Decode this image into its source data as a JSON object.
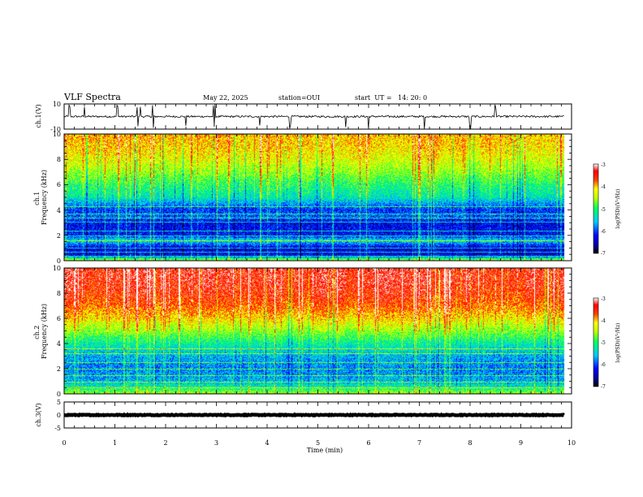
{
  "header": {
    "title": "VLF Spectra",
    "date": "May 22, 2025",
    "station": "station=OUI",
    "start_ut": "start  UT =   14: 20: 0"
  },
  "colors": {
    "colormap": [
      "#000080",
      "#0000ff",
      "#00a0ff",
      "#00ffff",
      "#00ff80",
      "#80ff00",
      "#ffff00",
      "#ff8000",
      "#ff0000",
      "#ffffff"
    ]
  },
  "chart_data": [
    {
      "type": "line",
      "name": "ch1-waveform",
      "ylabel": "ch.1(V)",
      "xlim": [
        0,
        10
      ],
      "ylim": [
        -10,
        10
      ],
      "ytick_labels": [
        "10",
        "-10"
      ],
      "baseline_v": 0,
      "noise_v": 1.5,
      "data_end_min": 9.85,
      "spikes_min": [
        0.1,
        0.4,
        1.05,
        1.45,
        1.5,
        1.75,
        2.4,
        2.95,
        2.97,
        3.85,
        4.45,
        5.55,
        6.0,
        7.1,
        8.0,
        8.5
      ]
    },
    {
      "type": "heatmap",
      "name": "ch1-spectrogram",
      "ylabel": "ch.1\nFrequency (kHz)",
      "xlim": [
        0,
        10
      ],
      "ylim": [
        0,
        10
      ],
      "ytick_labels": [
        "0",
        "2",
        "4",
        "6",
        "8",
        "10"
      ],
      "data_end_min": 9.85,
      "colorbar": {
        "label": "log(PSD)(V^2/Hz)",
        "range": [
          -7,
          -3
        ],
        "tick_labels": [
          "-3",
          "-4",
          "-5",
          "-6",
          "-7"
        ]
      },
      "profile": [
        {
          "f_khz": 0.0,
          "log_psd": -4.3
        },
        {
          "f_khz": 0.4,
          "log_psd": -6.3
        },
        {
          "f_khz": 1.0,
          "log_psd": -6.4
        },
        {
          "f_khz": 1.6,
          "log_psd": -5.4
        },
        {
          "f_khz": 2.0,
          "log_psd": -6.2
        },
        {
          "f_khz": 3.0,
          "log_psd": -6.3
        },
        {
          "f_khz": 3.5,
          "log_psd": -5.9
        },
        {
          "f_khz": 4.0,
          "log_psd": -6.1
        },
        {
          "f_khz": 5.0,
          "log_psd": -5.3
        },
        {
          "f_khz": 6.0,
          "log_psd": -5.0
        },
        {
          "f_khz": 7.0,
          "log_psd": -4.6
        },
        {
          "f_khz": 8.0,
          "log_psd": -4.3
        },
        {
          "f_khz": 9.0,
          "log_psd": -4.1
        },
        {
          "f_khz": 10.0,
          "log_psd": -4.0
        }
      ],
      "line_freqs_khz": [
        0.4,
        0.7,
        1.0,
        1.6,
        2.0,
        2.4,
        3.1,
        3.4,
        3.7,
        4.3
      ]
    },
    {
      "type": "heatmap",
      "name": "ch2-spectrogram",
      "ylabel": "ch.2\nFrequency (kHz)",
      "xlim": [
        0,
        10
      ],
      "ylim": [
        0,
        10
      ],
      "ytick_labels": [
        "0",
        "2",
        "4",
        "6",
        "8",
        "10"
      ],
      "data_end_min": 9.85,
      "colorbar": {
        "label": "log(PSD)(V^2/Hz)",
        "range": [
          -7,
          -3
        ],
        "tick_labels": [
          "-3",
          "-4",
          "-5",
          "-6",
          "-7"
        ]
      },
      "profile": [
        {
          "f_khz": 0.0,
          "log_psd": -4.5
        },
        {
          "f_khz": 0.5,
          "log_psd": -5.2
        },
        {
          "f_khz": 1.0,
          "log_psd": -5.6
        },
        {
          "f_khz": 2.0,
          "log_psd": -5.8
        },
        {
          "f_khz": 3.0,
          "log_psd": -5.6
        },
        {
          "f_khz": 4.0,
          "log_psd": -5.2
        },
        {
          "f_khz": 5.0,
          "log_psd": -4.6
        },
        {
          "f_khz": 6.0,
          "log_psd": -4.1
        },
        {
          "f_khz": 7.0,
          "log_psd": -3.7
        },
        {
          "f_khz": 8.0,
          "log_psd": -3.5
        },
        {
          "f_khz": 9.0,
          "log_psd": -3.4
        },
        {
          "f_khz": 10.0,
          "log_psd": -3.4
        }
      ],
      "line_freqs_khz": [
        0.5,
        1.0,
        1.5,
        2.0,
        2.5,
        3.2,
        3.6
      ]
    },
    {
      "type": "line",
      "name": "ch3-waveform",
      "ylabel": "ch.3(V)",
      "xlim": [
        0,
        10
      ],
      "ylim": [
        -5,
        5
      ],
      "ytick_labels": [
        "5",
        "0",
        "-5"
      ],
      "baseline_v": 0,
      "noise_v": 0.3,
      "data_end_min": 9.85,
      "spikes_min": []
    }
  ],
  "xaxis": {
    "label": "Time (min)",
    "tick_labels": [
      "0",
      "1",
      "2",
      "3",
      "4",
      "5",
      "6",
      "7",
      "8",
      "9",
      "10"
    ]
  }
}
